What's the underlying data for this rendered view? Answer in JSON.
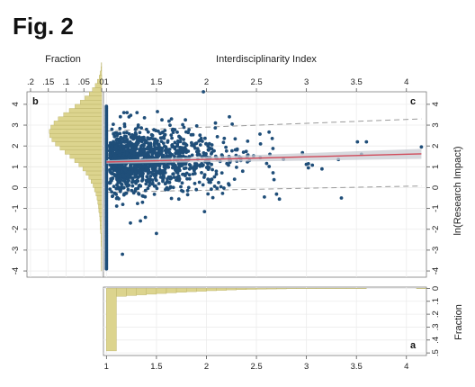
{
  "figure": {
    "title": "Fig. 2"
  },
  "colors": {
    "point": "#1f4e79",
    "fit_line": "#d04a5a",
    "ci_band": "#c9ccd3",
    "pred_band": "#9a9a9a",
    "hist_fill": "#dcd48e",
    "hist_stroke": "#b7ae63"
  },
  "chart_data": [
    {
      "panel": "c",
      "type": "scatter",
      "xlabel": "Interdisciplinarity Index",
      "ylabel": "ln(Research Impact)",
      "xlim": [
        0.97,
        4.2
      ],
      "ylim": [
        -4.3,
        4.6
      ],
      "x_ticks": [
        "1",
        "1.5",
        "2",
        "2.5",
        "3",
        "3.5",
        "4"
      ],
      "y_ticks": [
        "4",
        "3",
        "2",
        "1",
        "0",
        "-1",
        "-2",
        "-3",
        "-4"
      ],
      "grid": true,
      "fit_line": {
        "x": [
          1.0,
          4.15
        ],
        "y": [
          1.23,
          1.62
        ]
      },
      "ci_band": {
        "x": [
          1.0,
          4.15
        ],
        "lower": [
          1.15,
          1.38
        ],
        "upper": [
          1.31,
          1.86
        ]
      },
      "prediction_interval": {
        "upper": {
          "x": [
            1.0,
            4.15
          ],
          "y": [
            2.72,
            3.3
          ]
        },
        "lower": {
          "x": [
            1.0,
            4.15
          ],
          "y": [
            -0.22,
            0.08
          ]
        }
      },
      "points_summary": {
        "n": 1500,
        "x_range": [
          1.0,
          4.15
        ],
        "y_range": [
          -3.9,
          4.6
        ]
      },
      "points_selected": [
        {
          "x": 1.97,
          "y": 4.6
        },
        {
          "x": 1.51,
          "y": 3.65
        },
        {
          "x": 1.38,
          "y": 3.35
        },
        {
          "x": 1.65,
          "y": 3.3
        },
        {
          "x": 1.79,
          "y": 3.25
        },
        {
          "x": 2.09,
          "y": 3.1
        },
        {
          "x": 2.23,
          "y": 3.4
        },
        {
          "x": 1.16,
          "y": -3.2
        },
        {
          "x": 1.5,
          "y": -2.2
        },
        {
          "x": 1.24,
          "y": -1.7
        },
        {
          "x": 1.34,
          "y": -1.6
        },
        {
          "x": 1.98,
          "y": -1.15
        },
        {
          "x": 2.58,
          "y": -0.45
        },
        {
          "x": 2.73,
          "y": -0.55
        },
        {
          "x": 3.35,
          "y": -0.5
        },
        {
          "x": 3.32,
          "y": 1.35
        },
        {
          "x": 3.51,
          "y": 2.2
        },
        {
          "x": 3.6,
          "y": 2.2
        },
        {
          "x": 3.55,
          "y": 1.6
        },
        {
          "x": 4.15,
          "y": 1.95
        },
        {
          "x": 3.02,
          "y": 1.15
        },
        {
          "x": 3.02,
          "y": 0.95
        }
      ]
    },
    {
      "panel": "b",
      "type": "bar",
      "orientation": "horizontal",
      "xlabel": "Fraction",
      "xlim": [
        0.21,
        -0.005
      ],
      "x_ticks": [
        ".2",
        ".15",
        ".1",
        ".05",
        "0"
      ],
      "y_ticks": [
        "4",
        "3",
        "2",
        "1",
        "0",
        "-1",
        "-2",
        "-3",
        "-4"
      ],
      "bin_width": 0.2,
      "bins_y_start": -4.0,
      "fractions": [
        0.001,
        0.001,
        0.001,
        0.001,
        0.001,
        0.001,
        0.002,
        0.002,
        0.002,
        0.003,
        0.004,
        0.004,
        0.005,
        0.006,
        0.008,
        0.009,
        0.011,
        0.013,
        0.016,
        0.02,
        0.024,
        0.03,
        0.036,
        0.044,
        0.053,
        0.064,
        0.076,
        0.089,
        0.103,
        0.117,
        0.13,
        0.14,
        0.146,
        0.147,
        0.143,
        0.134,
        0.122,
        0.107,
        0.091,
        0.075,
        0.06,
        0.047,
        0.035,
        0.026,
        0.018,
        0.012,
        0.007,
        0.004,
        0.002,
        0.001
      ]
    },
    {
      "panel": "a",
      "type": "bar",
      "orientation": "vertical",
      "ylabel": "Fraction",
      "ylim": [
        -0.01,
        0.52
      ],
      "y_ticks": [
        "0",
        ".1",
        ".2",
        ".3",
        ".4",
        ".5"
      ],
      "x_ticks": [
        "1",
        "1.5",
        "2",
        "2.5",
        "3",
        "3.5",
        "4"
      ],
      "bin_width": 0.1,
      "bins_x_start": 1.0,
      "fractions": [
        0.485,
        0.062,
        0.056,
        0.05,
        0.045,
        0.04,
        0.035,
        0.03,
        0.026,
        0.022,
        0.018,
        0.015,
        0.012,
        0.01,
        0.008,
        0.006,
        0.005,
        0.004,
        0.003,
        0.002,
        0.0015,
        0.0012,
        0.001,
        0.0008,
        0.0006,
        0.0005,
        0,
        0,
        0,
        0,
        0,
        0.0005
      ]
    }
  ]
}
